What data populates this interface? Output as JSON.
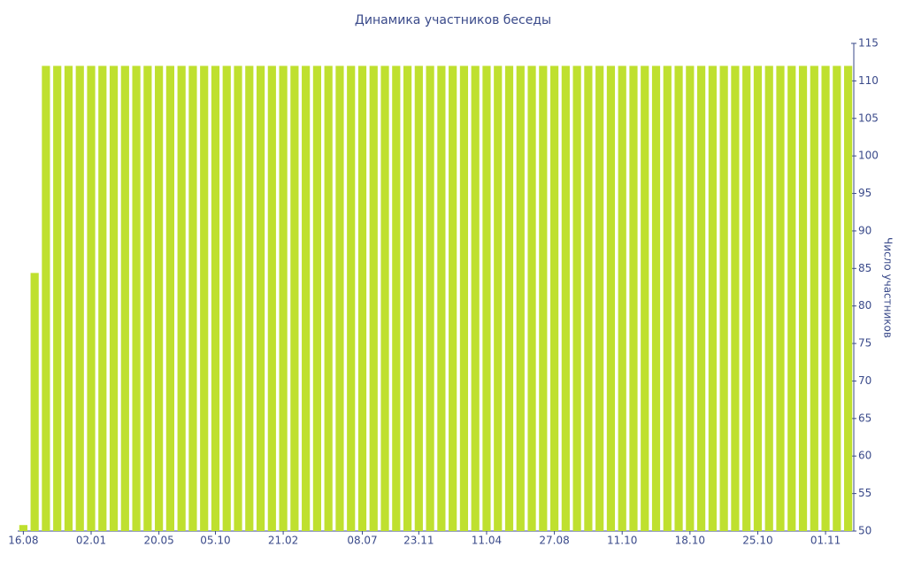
{
  "chart_data": {
    "type": "bar",
    "title": "Динамика участников беседы",
    "y_label": "Число участников",
    "categories": [
      "16.08",
      null,
      null,
      null,
      null,
      null,
      "02.01",
      null,
      null,
      null,
      null,
      null,
      "20.05",
      null,
      null,
      null,
      null,
      "05.10",
      null,
      null,
      null,
      null,
      null,
      "21.02",
      null,
      null,
      null,
      null,
      null,
      null,
      "08.07",
      null,
      null,
      null,
      null,
      "23.11",
      null,
      null,
      null,
      null,
      null,
      "11.04",
      null,
      null,
      null,
      null,
      null,
      "27.08",
      null,
      null,
      null,
      null,
      null,
      "11.10",
      null,
      null,
      null,
      null,
      null,
      "18.10",
      null,
      null,
      null,
      null,
      null,
      "25.10",
      null,
      null,
      null,
      null,
      null,
      "01.11",
      null,
      null
    ],
    "values": [
      50.8,
      84.4,
      112,
      112,
      112,
      112,
      112,
      112,
      112,
      112,
      112,
      112,
      112,
      112,
      112,
      112,
      112,
      112,
      112,
      112,
      112,
      112,
      112,
      112,
      112,
      112,
      112,
      112,
      112,
      112,
      112,
      112,
      112,
      112,
      112,
      112,
      112,
      112,
      112,
      112,
      112,
      112,
      112,
      112,
      112,
      112,
      112,
      112,
      112,
      112,
      112,
      112,
      112,
      112,
      112,
      112,
      112,
      112,
      112,
      112,
      112,
      112,
      112,
      112,
      112,
      112,
      112,
      112,
      112,
      112,
      112,
      112,
      112,
      112
    ],
    "color": "#bfe02f",
    "ylim": [
      50,
      115
    ],
    "yticks": [
      50,
      55,
      60,
      65,
      70,
      75,
      80,
      85,
      90,
      95,
      100,
      105,
      110,
      115
    ],
    "y_axis_side": "right"
  }
}
